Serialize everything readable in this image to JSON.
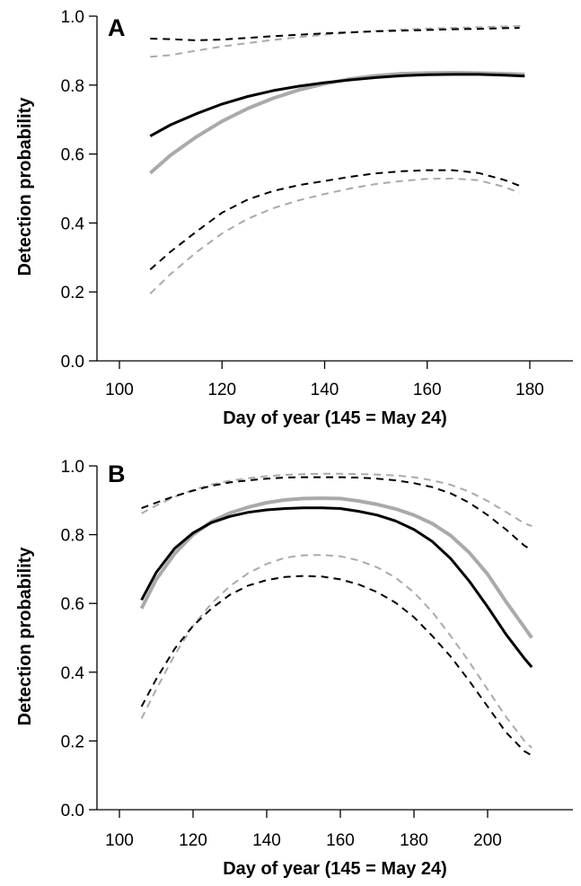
{
  "chart_data": [
    {
      "type": "line",
      "panel_label": "A",
      "xlabel": "Day of year (145 = May 24)",
      "ylabel": "Detection probability",
      "xlim": [
        95,
        187
      ],
      "ylim": [
        0.0,
        1.0
      ],
      "xticks": [
        100,
        120,
        140,
        160,
        180
      ],
      "yticks": [
        "0.0",
        "0.2",
        "0.4",
        "0.6",
        "0.8",
        "1.0"
      ],
      "grid": false,
      "legend": "none",
      "series": [
        {
          "color": "#000000",
          "style": "solid",
          "width": 3,
          "x": [
            106,
            110,
            115,
            120,
            125,
            130,
            135,
            140,
            145,
            150,
            155,
            160,
            165,
            170,
            175,
            179
          ],
          "y": [
            0.652,
            0.685,
            0.717,
            0.745,
            0.767,
            0.784,
            0.797,
            0.807,
            0.815,
            0.822,
            0.827,
            0.83,
            0.831,
            0.831,
            0.829,
            0.826
          ]
        },
        {
          "color": "#aaaaaa",
          "style": "solid",
          "width": 4,
          "x": [
            106,
            110,
            115,
            120,
            125,
            130,
            135,
            140,
            145,
            150,
            155,
            160,
            165,
            170,
            175,
            179
          ],
          "y": [
            0.545,
            0.597,
            0.65,
            0.695,
            0.732,
            0.762,
            0.786,
            0.804,
            0.818,
            0.827,
            0.833,
            0.835,
            0.836,
            0.835,
            0.833,
            0.831
          ]
        },
        {
          "color": "#000000",
          "style": "dashed",
          "width": 2,
          "x": [
            106,
            110,
            115,
            120,
            125,
            130,
            135,
            140,
            145,
            150,
            155,
            160,
            165,
            170,
            175,
            178
          ],
          "y": [
            0.935,
            0.933,
            0.93,
            0.932,
            0.937,
            0.942,
            0.946,
            0.95,
            0.953,
            0.956,
            0.958,
            0.96,
            0.962,
            0.963,
            0.965,
            0.966
          ]
        },
        {
          "color": "#aaaaaa",
          "style": "dashed",
          "width": 2,
          "x": [
            106,
            110,
            115,
            120,
            125,
            130,
            135,
            140,
            145,
            150,
            155,
            160,
            165,
            170,
            175,
            179
          ],
          "y": [
            0.882,
            0.887,
            0.9,
            0.912,
            0.922,
            0.931,
            0.939,
            0.946,
            0.952,
            0.957,
            0.961,
            0.964,
            0.966,
            0.968,
            0.97,
            0.972
          ]
        },
        {
          "color": "#000000",
          "style": "dashed",
          "width": 2,
          "x": [
            106,
            110,
            115,
            120,
            125,
            130,
            135,
            140,
            145,
            150,
            155,
            160,
            165,
            170,
            175,
            178
          ],
          "y": [
            0.265,
            0.317,
            0.375,
            0.43,
            0.468,
            0.493,
            0.51,
            0.522,
            0.534,
            0.544,
            0.55,
            0.553,
            0.553,
            0.545,
            0.525,
            0.508
          ]
        },
        {
          "color": "#aaaaaa",
          "style": "dashed",
          "width": 2,
          "x": [
            106,
            110,
            115,
            120,
            125,
            130,
            135,
            140,
            145,
            150,
            155,
            160,
            165,
            170,
            175,
            178
          ],
          "y": [
            0.195,
            0.252,
            0.315,
            0.37,
            0.412,
            0.443,
            0.466,
            0.484,
            0.5,
            0.513,
            0.522,
            0.528,
            0.529,
            0.524,
            0.505,
            0.488
          ]
        }
      ]
    },
    {
      "type": "line",
      "panel_label": "B",
      "xlabel": "Day of year (145 = May 24)",
      "ylabel": "Detection probability",
      "xlim": [
        95,
        219
      ],
      "ylim": [
        0.0,
        1.0
      ],
      "xticks": [
        100,
        120,
        140,
        160,
        180,
        200
      ],
      "yticks": [
        "0.0",
        "0.2",
        "0.4",
        "0.6",
        "0.8",
        "1.0"
      ],
      "grid": false,
      "legend": "none",
      "series": [
        {
          "color": "#000000",
          "style": "solid",
          "width": 3,
          "x": [
            106,
            110,
            115,
            120,
            125,
            130,
            135,
            140,
            145,
            150,
            155,
            160,
            165,
            170,
            175,
            180,
            185,
            190,
            195,
            200,
            205,
            210,
            212
          ],
          "y": [
            0.61,
            0.69,
            0.76,
            0.805,
            0.835,
            0.853,
            0.865,
            0.872,
            0.876,
            0.878,
            0.878,
            0.876,
            0.868,
            0.857,
            0.84,
            0.815,
            0.78,
            0.73,
            0.665,
            0.59,
            0.51,
            0.44,
            0.415
          ]
        },
        {
          "color": "#aaaaaa",
          "style": "solid",
          "width": 4,
          "x": [
            106,
            110,
            115,
            120,
            125,
            130,
            135,
            140,
            145,
            150,
            155,
            160,
            165,
            170,
            175,
            180,
            185,
            190,
            195,
            200,
            205,
            210,
            212
          ],
          "y": [
            0.585,
            0.67,
            0.745,
            0.8,
            0.838,
            0.863,
            0.88,
            0.893,
            0.901,
            0.905,
            0.906,
            0.905,
            0.898,
            0.888,
            0.875,
            0.857,
            0.832,
            0.797,
            0.748,
            0.685,
            0.605,
            0.53,
            0.5
          ]
        },
        {
          "color": "#000000",
          "style": "dashed",
          "width": 2,
          "x": [
            106,
            110,
            115,
            120,
            125,
            130,
            135,
            140,
            145,
            150,
            155,
            160,
            165,
            170,
            175,
            180,
            185,
            190,
            195,
            200,
            205,
            210,
            212
          ],
          "y": [
            0.877,
            0.893,
            0.912,
            0.928,
            0.942,
            0.952,
            0.958,
            0.963,
            0.966,
            0.967,
            0.967,
            0.967,
            0.966,
            0.963,
            0.958,
            0.95,
            0.938,
            0.92,
            0.893,
            0.857,
            0.815,
            0.768,
            0.755
          ]
        },
        {
          "color": "#aaaaaa",
          "style": "dashed",
          "width": 2,
          "x": [
            106,
            110,
            115,
            120,
            125,
            130,
            135,
            140,
            145,
            150,
            155,
            160,
            165,
            170,
            175,
            180,
            185,
            190,
            195,
            200,
            205,
            210,
            212
          ],
          "y": [
            0.862,
            0.885,
            0.91,
            0.93,
            0.946,
            0.957,
            0.964,
            0.97,
            0.974,
            0.976,
            0.977,
            0.977,
            0.976,
            0.975,
            0.972,
            0.967,
            0.958,
            0.945,
            0.925,
            0.898,
            0.866,
            0.833,
            0.825
          ]
        },
        {
          "color": "#000000",
          "style": "dashed",
          "width": 2,
          "x": [
            106,
            110,
            115,
            120,
            125,
            130,
            135,
            140,
            145,
            150,
            155,
            160,
            165,
            170,
            175,
            180,
            185,
            190,
            195,
            200,
            205,
            210,
            212
          ],
          "y": [
            0.3,
            0.38,
            0.468,
            0.535,
            0.585,
            0.625,
            0.652,
            0.668,
            0.677,
            0.68,
            0.678,
            0.67,
            0.655,
            0.633,
            0.602,
            0.56,
            0.505,
            0.445,
            0.375,
            0.3,
            0.225,
            0.17,
            0.158
          ]
        },
        {
          "color": "#aaaaaa",
          "style": "dashed",
          "width": 2,
          "x": [
            106,
            110,
            115,
            120,
            125,
            130,
            135,
            140,
            145,
            150,
            155,
            160,
            165,
            170,
            175,
            180,
            185,
            190,
            195,
            200,
            205,
            210,
            212
          ],
          "y": [
            0.265,
            0.35,
            0.45,
            0.535,
            0.6,
            0.65,
            0.688,
            0.715,
            0.733,
            0.74,
            0.741,
            0.737,
            0.725,
            0.705,
            0.675,
            0.632,
            0.575,
            0.505,
            0.43,
            0.35,
            0.27,
            0.2,
            0.18
          ]
        }
      ]
    }
  ]
}
